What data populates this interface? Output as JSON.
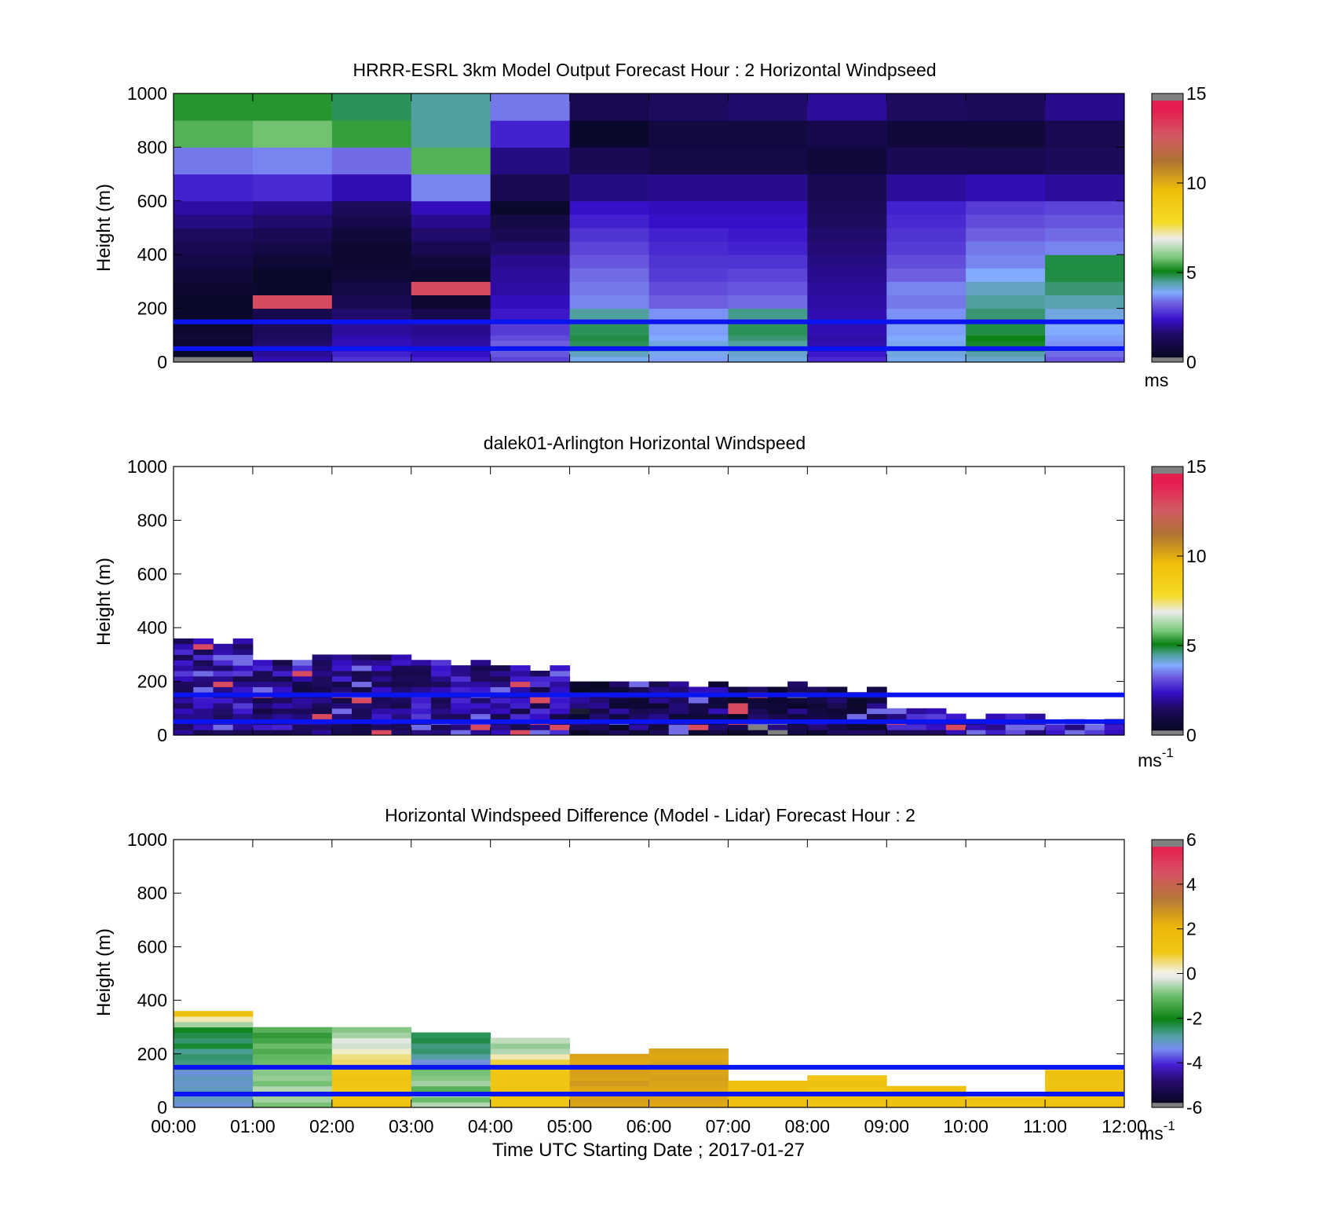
{
  "x_ticks": [
    "00:00",
    "01:00",
    "02:00",
    "03:00",
    "04:00",
    "05:00",
    "06:00",
    "07:00",
    "08:00",
    "09:00",
    "10:00",
    "11:00",
    "12:00"
  ],
  "x_label": "Time UTC  Starting Date ; 2017-01-27",
  "y_label": "Height (m)",
  "panels": [
    {
      "title": "HRRR-ESRL 3km Model Output   Forecast Hour : 2 Horizontal Windpseed",
      "units_main": "ms",
      "units_sup": ""
    },
    {
      "title": "dalek01-Arlington  Horizontal Windspeed",
      "units_main": "ms",
      "units_sup": "-1"
    },
    {
      "title": "Horizontal Windspeed Difference (Model - Lidar) Forecast Hour : 2",
      "units_main": "ms",
      "units_sup": "-1"
    }
  ],
  "chart_data": [
    {
      "type": "heatmap",
      "title": "HRRR-ESRL 3km Model Output   Forecast Hour : 2 Horizontal Windpseed",
      "ylabel": "Height (m)",
      "xlim": [
        0,
        12
      ],
      "ylim": [
        0,
        1000
      ],
      "y_ticks": [
        0,
        200,
        400,
        600,
        800,
        1000
      ],
      "colorbar": {
        "range": [
          0,
          15
        ],
        "ticks": [
          0,
          5,
          10,
          15
        ],
        "unit": "ms"
      },
      "reference_lines_m": [
        50,
        150
      ],
      "reference_line_color": "#0a14f0",
      "x_edges_hours": [
        0,
        1,
        2,
        3,
        4,
        5,
        6,
        7,
        8,
        9,
        10,
        11,
        12
      ],
      "y_edges_m": [
        0,
        20,
        40,
        60,
        80,
        100,
        150,
        200,
        250,
        300,
        350,
        400,
        450,
        500,
        550,
        600,
        700,
        800,
        900,
        1000
      ],
      "values_ms": [
        [
          0.3,
          2.2,
          2.8,
          2.6,
          3.0,
          4.0,
          3.8,
          4.1,
          2.7,
          4.0,
          4.2,
          3.2
        ],
        [
          0.4,
          2.0,
          2.6,
          2.4,
          3.2,
          4.3,
          4.0,
          4.2,
          2.5,
          4.1,
          4.4,
          3.4
        ],
        [
          0.5,
          1.8,
          2.4,
          2.2,
          3.4,
          4.6,
          4.2,
          4.4,
          2.3,
          4.2,
          4.8,
          3.6
        ],
        [
          0.6,
          1.6,
          2.3,
          2.1,
          3.3,
          4.8,
          4.1,
          4.5,
          2.2,
          4.0,
          5.0,
          3.7
        ],
        [
          0.7,
          1.5,
          2.2,
          2.0,
          3.1,
          4.9,
          3.9,
          4.7,
          2.1,
          3.9,
          5.1,
          3.8
        ],
        [
          0.6,
          1.4,
          2.0,
          1.9,
          2.9,
          4.8,
          3.8,
          4.8,
          2.2,
          3.8,
          4.9,
          3.9
        ],
        [
          0.5,
          1.1,
          1.6,
          1.1,
          2.5,
          4.5,
          3.7,
          4.6,
          2.2,
          3.7,
          4.7,
          4.1
        ],
        [
          0.4,
          13.0,
          1.3,
          0.6,
          2.3,
          3.6,
          3.3,
          3.4,
          2.1,
          3.5,
          4.5,
          4.4
        ],
        [
          0.6,
          0.5,
          1.0,
          13.0,
          2.1,
          3.5,
          3.1,
          3.2,
          2.0,
          3.6,
          4.3,
          4.7
        ],
        [
          0.8,
          0.4,
          0.7,
          0.6,
          2.0,
          3.4,
          2.9,
          3.0,
          1.9,
          3.3,
          3.9,
          4.9
        ],
        [
          1.0,
          0.7,
          0.6,
          0.8,
          1.9,
          3.2,
          2.8,
          2.8,
          1.8,
          3.1,
          3.6,
          4.9
        ],
        [
          1.2,
          1.0,
          0.6,
          1.2,
          1.6,
          3.0,
          2.7,
          2.6,
          1.7,
          2.9,
          3.5,
          3.6
        ],
        [
          1.5,
          1.3,
          0.8,
          1.6,
          1.3,
          2.8,
          2.6,
          2.5,
          1.6,
          2.8,
          3.3,
          3.4
        ],
        [
          1.8,
          1.6,
          1.1,
          1.9,
          1.0,
          2.6,
          2.4,
          2.4,
          1.5,
          2.7,
          3.1,
          3.2
        ],
        [
          2.1,
          1.9,
          1.4,
          2.3,
          0.5,
          2.4,
          2.3,
          2.3,
          1.4,
          2.6,
          2.9,
          3.0
        ],
        [
          2.6,
          2.7,
          2.2,
          3.6,
          1.2,
          1.8,
          1.9,
          1.9,
          1.3,
          2.0,
          2.2,
          2.0
        ],
        [
          3.5,
          3.6,
          3.4,
          5.6,
          1.8,
          1.3,
          1.0,
          1.0,
          0.8,
          1.3,
          1.2,
          1.4
        ],
        [
          5.6,
          5.8,
          5.4,
          4.5,
          2.6,
          0.5,
          0.9,
          0.9,
          1.1,
          0.8,
          0.8,
          1.2
        ],
        [
          5.3,
          5.3,
          4.8,
          4.5,
          3.5,
          1.2,
          1.5,
          1.6,
          2.0,
          1.5,
          1.4,
          1.9
        ]
      ]
    },
    {
      "type": "heatmap",
      "title": "dalek01-Arlington  Horizontal Windspeed",
      "ylabel": "Height (m)",
      "xlim": [
        0,
        12
      ],
      "ylim": [
        0,
        1000
      ],
      "y_ticks": [
        0,
        200,
        400,
        600,
        800,
        1000
      ],
      "colorbar": {
        "range": [
          0,
          15
        ],
        "ticks": [
          0,
          5,
          10,
          15
        ],
        "unit": "ms-1"
      },
      "reference_lines_m": [
        50,
        150
      ],
      "reference_line_color": "#0a14f0",
      "time_step_hours": 0.25,
      "gate_height_m": 20,
      "max_valid_height_m": [
        360,
        300,
        300,
        280,
        260,
        200,
        200,
        200,
        180,
        100,
        80,
        70
      ],
      "hourly_mean_speed_ms": [
        2.0,
        1.8,
        1.8,
        2.0,
        1.9,
        1.2,
        1.4,
        1.0,
        1.3,
        2.2,
        2.3,
        2.0
      ]
    },
    {
      "type": "heatmap",
      "title": "Horizontal Windspeed Difference (Model - Lidar) Forecast Hour : 2",
      "ylabel": "Height (m)",
      "xlabel": "Time UTC  Starting Date ; 2017-01-27",
      "xlim": [
        0,
        12
      ],
      "ylim": [
        0,
        1000
      ],
      "y_ticks": [
        0,
        200,
        400,
        600,
        800,
        1000
      ],
      "colorbar": {
        "range": [
          -6,
          6
        ],
        "ticks": [
          -6,
          -4,
          -2,
          0,
          2,
          4,
          6
        ],
        "unit": "ms-1"
      },
      "reference_lines_m": [
        50,
        150
      ],
      "reference_line_color": "#0a14f0",
      "x_edges_hours": [
        0,
        1,
        2,
        3,
        4,
        5,
        6,
        7,
        8,
        9,
        10,
        11,
        12
      ],
      "y_edges_m": [
        0,
        20,
        40,
        60,
        80,
        100,
        120,
        140,
        160,
        180,
        200,
        220,
        240,
        260,
        280,
        300,
        320,
        340,
        360
      ],
      "values_ms": [
        [
          -3.2,
          -0.9,
          1.3,
          -0.5,
          1.1,
          2.5,
          2.4,
          1.5,
          1.2,
          1.3,
          1.2,
          1.3
        ],
        [
          -3.0,
          -0.6,
          1.2,
          -1.0,
          1.0,
          2.6,
          2.5,
          1.4,
          1.3,
          1.4,
          1.3,
          1.2
        ],
        [
          -3.1,
          -0.8,
          1.4,
          -0.3,
          1.3,
          2.5,
          2.6,
          1.6,
          1.2,
          1.2,
          null,
          1.4
        ],
        [
          -3.0,
          -0.5,
          1.0,
          -1.2,
          1.2,
          2.4,
          2.4,
          1.3,
          1.1,
          1.3,
          null,
          1.3
        ],
        [
          -3.1,
          -0.9,
          1.2,
          -0.6,
          1.0,
          2.7,
          2.5,
          1.5,
          1.4,
          null,
          null,
          1.2
        ],
        [
          -3.0,
          -0.7,
          1.3,
          -0.8,
          1.1,
          2.5,
          2.6,
          null,
          1.2,
          null,
          null,
          1.3
        ],
        [
          -3.2,
          -0.8,
          1.1,
          -0.9,
          1.0,
          2.6,
          2.5,
          null,
          null,
          null,
          null,
          1.4
        ],
        [
          -2.8,
          -0.6,
          1.0,
          -1.1,
          0.9,
          2.5,
          2.6,
          null,
          null,
          null,
          null,
          null
        ],
        [
          -2.6,
          -1.0,
          0.6,
          -3.2,
          0.8,
          2.4,
          2.5,
          null,
          null,
          null,
          null,
          null
        ],
        [
          -2.5,
          -1.1,
          0.5,
          -2.8,
          0.3,
          2.5,
          2.4,
          null,
          null,
          null,
          null,
          null
        ],
        [
          -2.7,
          -1.3,
          0.2,
          -2.5,
          -0.5,
          null,
          2.5,
          null,
          null,
          null,
          null,
          null
        ],
        [
          -2.2,
          -1.0,
          -0.3,
          -2.6,
          -0.7,
          null,
          null,
          null,
          null,
          null,
          null,
          null
        ],
        [
          -2.5,
          -1.4,
          -0.2,
          -2.3,
          -0.4,
          null,
          null,
          null,
          null,
          null,
          null,
          null
        ],
        [
          -2.3,
          -1.6,
          -0.6,
          -2.4,
          null,
          null,
          null,
          null,
          null,
          null,
          null,
          null
        ],
        [
          -2.1,
          -1.2,
          -0.8,
          null,
          null,
          null,
          null,
          null,
          null,
          null,
          null,
          null
        ],
        [
          -0.6,
          null,
          null,
          null,
          null,
          null,
          null,
          null,
          null,
          null,
          null,
          null
        ],
        [
          0.3,
          null,
          null,
          null,
          null,
          null,
          null,
          null,
          null,
          null,
          null,
          null
        ],
        [
          1.4,
          null,
          null,
          null,
          null,
          null,
          null,
          null,
          null,
          null,
          null,
          null
        ]
      ]
    }
  ]
}
